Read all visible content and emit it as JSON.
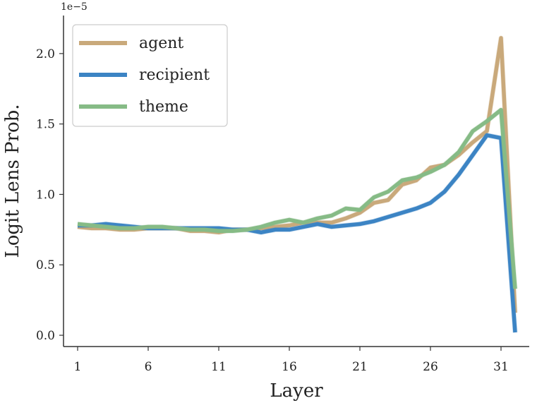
{
  "chart_data": {
    "type": "line",
    "xlabel": "Layer",
    "ylabel": "Logit Lens Prob.",
    "y_offset_label": "1e−5",
    "xlim": [
      0,
      33
    ],
    "ylim": [
      -0.08,
      2.27
    ],
    "xticks": [
      1,
      6,
      11,
      16,
      21,
      26,
      31
    ],
    "xtick_labels": [
      "1",
      "6",
      "11",
      "16",
      "21",
      "26",
      "31"
    ],
    "yticks": [
      0.0,
      0.5,
      1.0,
      1.5,
      2.0
    ],
    "ytick_labels": [
      "0.0",
      "0.5",
      "1.0",
      "1.5",
      "2.0"
    ],
    "grid": false,
    "legend_position": "top-left",
    "x": [
      1,
      2,
      3,
      4,
      5,
      6,
      7,
      8,
      9,
      10,
      11,
      12,
      13,
      14,
      15,
      16,
      17,
      18,
      19,
      20,
      21,
      22,
      23,
      24,
      25,
      26,
      27,
      28,
      29,
      30,
      31,
      32
    ],
    "series": [
      {
        "name": "agent",
        "color": "#c9a97b",
        "values": [
          0.77,
          0.76,
          0.76,
          0.75,
          0.75,
          0.76,
          0.76,
          0.76,
          0.74,
          0.74,
          0.73,
          0.75,
          0.75,
          0.76,
          0.77,
          0.78,
          0.8,
          0.8,
          0.8,
          0.83,
          0.87,
          0.94,
          0.96,
          1.07,
          1.1,
          1.19,
          1.21,
          1.28,
          1.37,
          1.45,
          2.11,
          0.16
        ]
      },
      {
        "name": "recipient",
        "color": "#3c84c4",
        "values": [
          0.78,
          0.78,
          0.79,
          0.78,
          0.77,
          0.76,
          0.76,
          0.76,
          0.76,
          0.76,
          0.76,
          0.75,
          0.75,
          0.73,
          0.75,
          0.75,
          0.77,
          0.79,
          0.77,
          0.78,
          0.79,
          0.81,
          0.84,
          0.87,
          0.9,
          0.94,
          1.02,
          1.14,
          1.28,
          1.42,
          1.4,
          0.02
        ]
      },
      {
        "name": "theme",
        "color": "#86bb86",
        "values": [
          0.79,
          0.78,
          0.77,
          0.76,
          0.76,
          0.77,
          0.77,
          0.76,
          0.75,
          0.75,
          0.74,
          0.74,
          0.75,
          0.77,
          0.8,
          0.82,
          0.8,
          0.83,
          0.85,
          0.9,
          0.89,
          0.98,
          1.02,
          1.1,
          1.12,
          1.16,
          1.21,
          1.3,
          1.45,
          1.52,
          1.6,
          0.33
        ]
      }
    ]
  }
}
